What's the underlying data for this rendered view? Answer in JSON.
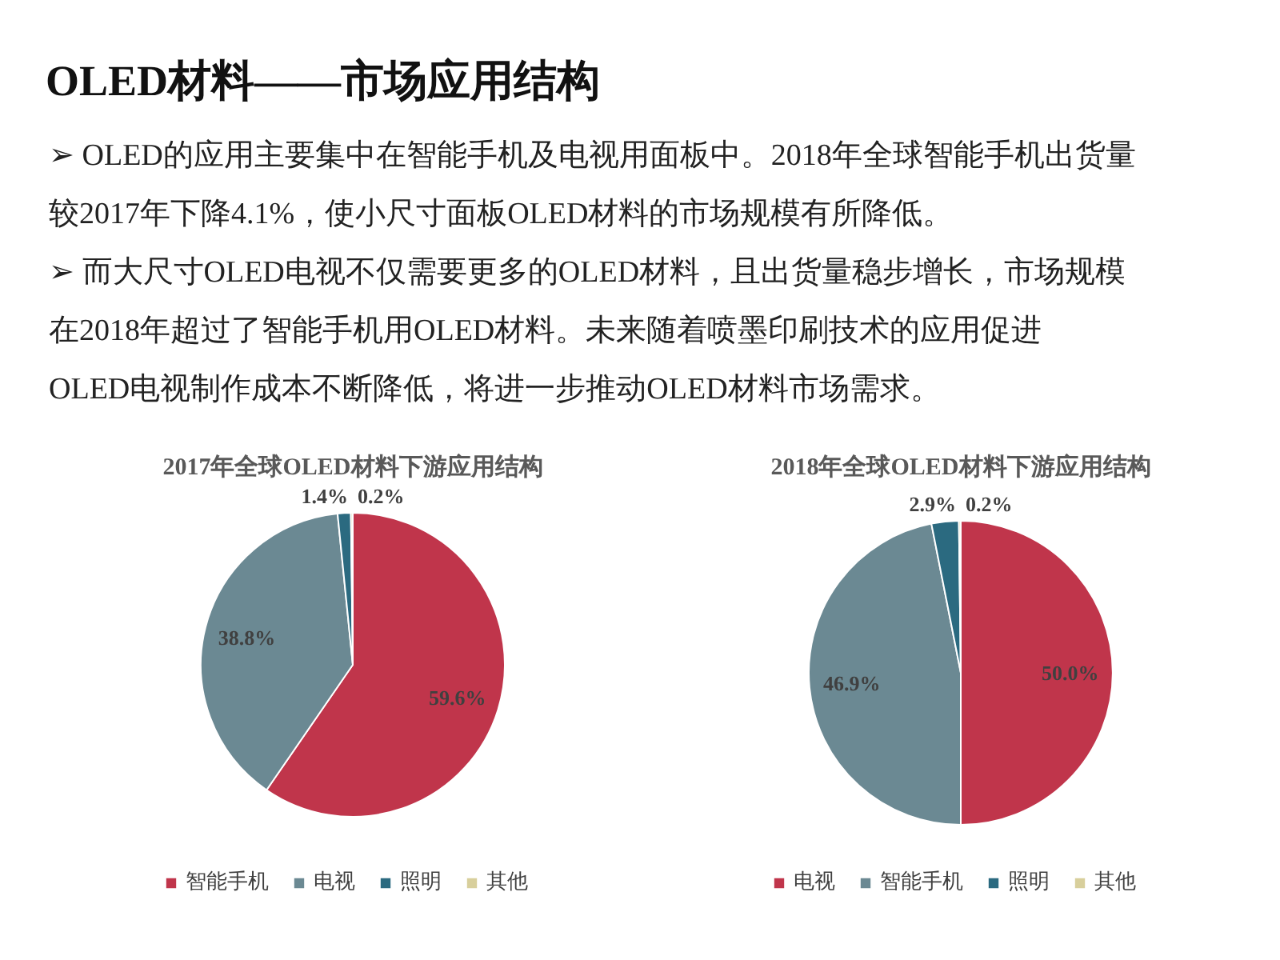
{
  "chart_data": [
    {
      "type": "other",
      "title": "OLED材料——市场应用结构",
      "annotations": [
        "➢ OLED的应用主要集中在智能手机及电视用面板中。2018年全球智能手机出货量",
        "较2017年下降4.1%，使小尺寸面板OLED材料的市场规模有所降低。",
        "➢ 而大尺寸OLED电视不仅需要更多的OLED材料，且出货量稳步增长，市场规模",
        "在2018年超过了智能手机用OLED材料。未来随着喷墨印刷技术的应用促进",
        "OLED电视制作成本不断降低，将进一步推动OLED材料市场需求。"
      ]
    },
    {
      "type": "pie",
      "title": "2017年全球OLED材料下游应用结构",
      "categories": [
        "智能手机",
        "电视",
        "照明",
        "其他"
      ],
      "values": [
        59.6,
        38.8,
        1.4,
        0.2
      ],
      "colors": [
        "#c0354b",
        "#6b8993",
        "#2b6a80",
        "#d8cf9c"
      ],
      "value_labels": [
        "59.6%",
        "38.8%",
        "1.4%",
        "0.2%"
      ],
      "legend": "bottom"
    },
    {
      "type": "pie",
      "title": "2018年全球OLED材料下游应用结构",
      "categories": [
        "电视",
        "智能手机",
        "照明",
        "其他"
      ],
      "values": [
        50.0,
        46.9,
        2.9,
        0.2
      ],
      "colors": [
        "#c0354b",
        "#6b8993",
        "#2b6a80",
        "#d8cf9c"
      ],
      "value_labels": [
        "50.0%",
        "46.9%",
        "2.9%",
        "0.2%"
      ],
      "legend": "bottom"
    }
  ]
}
